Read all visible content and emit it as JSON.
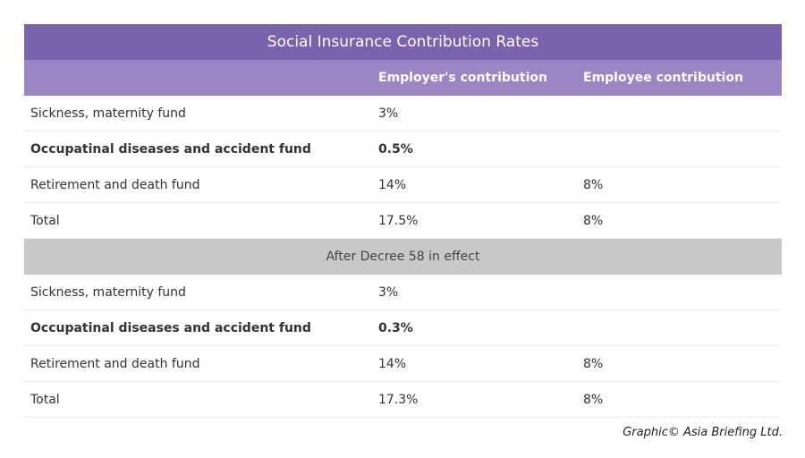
{
  "title": "Social Insurance Contribution Rates",
  "columns": [
    "Employer's contribution",
    "Employee contribution"
  ],
  "sections": [
    {
      "rows": [
        {
          "cells": [
            "Sickness, maternity fund",
            "3%"
          ]
        },
        {
          "cells": [
            "Occupatinal diseases and accident fund",
            "0.5%"
          ],
          "bold": true
        },
        {
          "cells": [
            "Retirement and death fund",
            "14%",
            "8%"
          ]
        },
        {
          "cells": [
            "Total",
            "17.5%",
            "8%"
          ]
        }
      ]
    },
    {
      "heading": "After Decree 58 in effect",
      "rows": [
        {
          "cells": [
            "Sickness, maternity fund",
            "3%"
          ]
        },
        {
          "cells": [
            "Occupatinal diseases and accident fund",
            "0.3%"
          ],
          "bold": true
        },
        {
          "cells": [
            "Retirement and death fund",
            "14%",
            "8%"
          ]
        },
        {
          "cells": [
            "Total",
            "17.3%",
            "8%"
          ]
        }
      ]
    }
  ],
  "credit": "Graphic© Asia Briefing Ltd."
}
